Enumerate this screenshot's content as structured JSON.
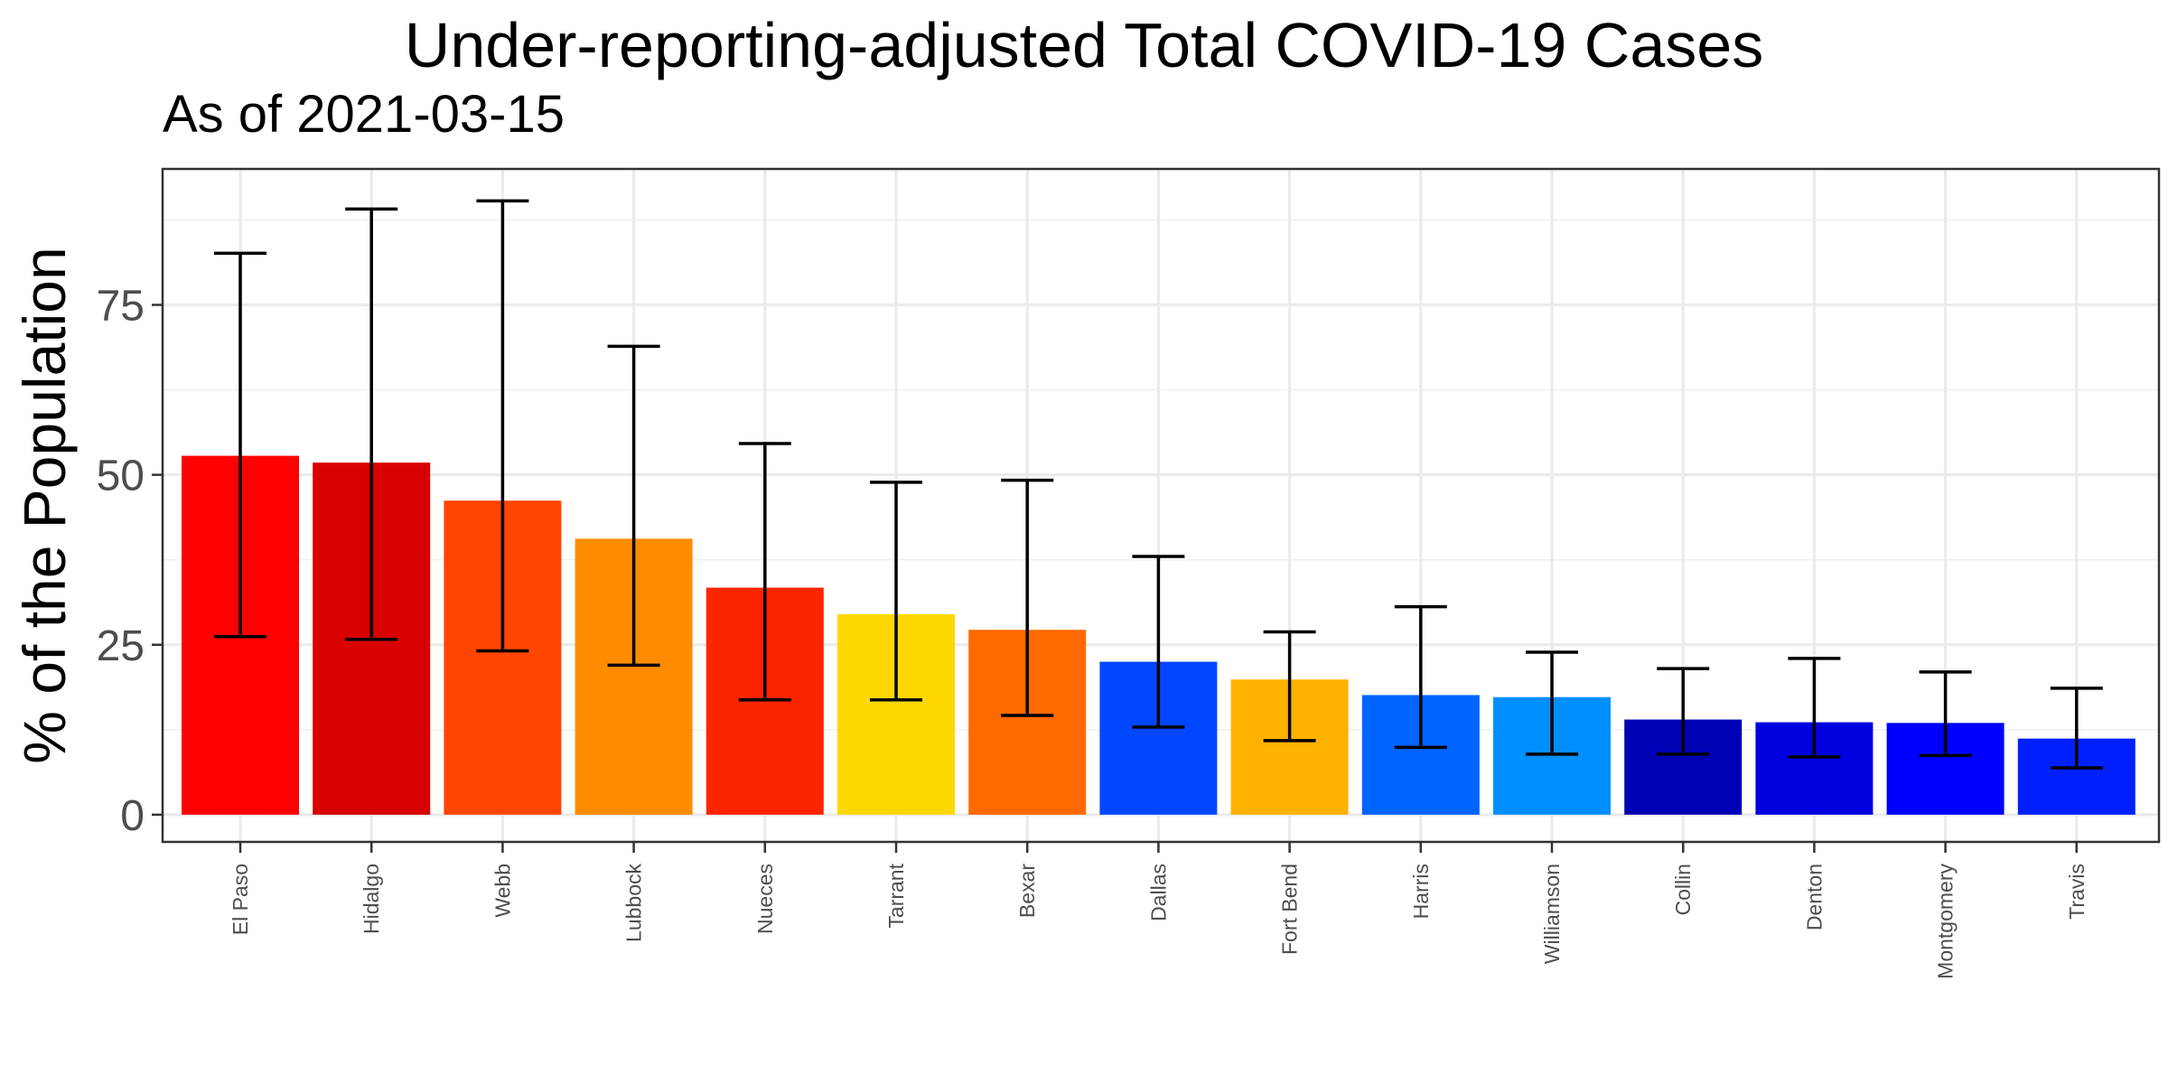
{
  "chart_data": {
    "type": "bar",
    "title": "Under-reporting-adjusted Total COVID-19 Cases",
    "subtitle": "As of 2021-03-15",
    "xlabel": "",
    "ylabel": "% of the Population",
    "ylim": [
      -4,
      95
    ],
    "yticks": [
      0,
      25,
      50,
      75
    ],
    "yticks_minor": [
      12.5,
      37.5,
      62.5,
      87.5
    ],
    "grid": true,
    "categories": [
      "El Paso",
      "Hidalgo",
      "Webb",
      "Lubbock",
      "Nueces",
      "Tarrant",
      "Bexar",
      "Dallas",
      "Fort Bend",
      "Harris",
      "Williamson",
      "Collin",
      "Denton",
      "Montgomery",
      "Travis"
    ],
    "values": [
      52.8,
      51.8,
      46.2,
      40.6,
      33.4,
      29.5,
      27.2,
      22.5,
      19.9,
      17.6,
      17.3,
      14.0,
      13.6,
      13.5,
      11.2
    ],
    "error_low": [
      26.2,
      25.8,
      24.1,
      22.0,
      16.9,
      16.9,
      14.6,
      12.9,
      10.9,
      9.9,
      8.9,
      8.9,
      8.5,
      8.7,
      6.9
    ],
    "error_high": [
      82.6,
      89.1,
      90.3,
      68.9,
      54.6,
      48.9,
      49.2,
      38.0,
      26.9,
      30.6,
      23.9,
      21.5,
      23.0,
      21.0,
      18.6
    ],
    "colors": [
      "#FF0000",
      "#D80000",
      "#FF4500",
      "#FF8C00",
      "#FF2400",
      "#FFD700",
      "#FF6A00",
      "#0047FF",
      "#FFB200",
      "#0064FF",
      "#008FFF",
      "#0000B4",
      "#0000E1",
      "#0000FF",
      "#0021FF"
    ]
  }
}
